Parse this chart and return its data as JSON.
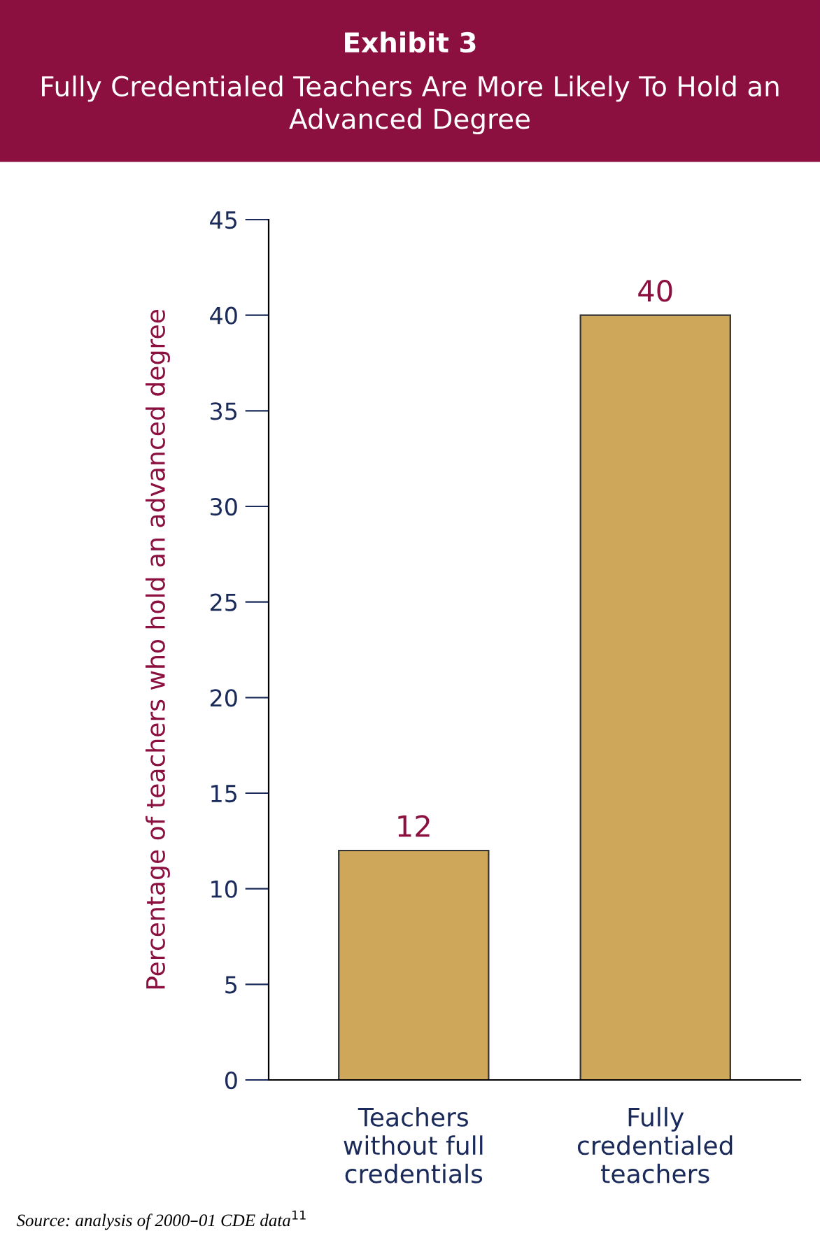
{
  "chart_data": {
    "type": "bar",
    "title": "Exhibit 3",
    "subtitle": "Fully Credentialed Teachers Are More Likely To Hold an Advanced Degree",
    "ylabel": "Percentage of teachers who hold an advanced degree",
    "categories": [
      "Teachers\nwithout full\ncredentials",
      "Fully\ncredentialed\nteachers"
    ],
    "values": [
      12,
      40
    ],
    "color": "#cfa75a",
    "ylim": [
      0,
      45
    ],
    "yticks": [
      0,
      5,
      10,
      15,
      20,
      25,
      30,
      35,
      40,
      45
    ],
    "data_labels": true,
    "grid": false,
    "legend": false,
    "annotations": [
      "Source: analysis of 2000–01 CDE data$^{11}$"
    ]
  }
}
